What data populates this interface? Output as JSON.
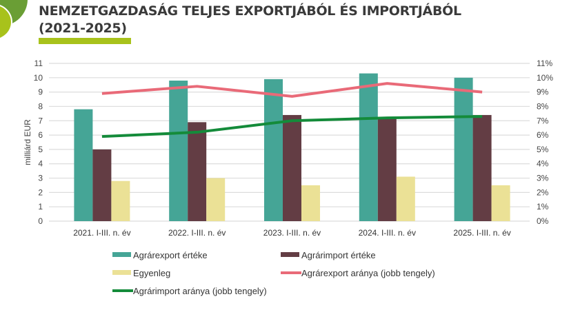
{
  "header": {
    "title_line2": "NEMZETGAZDASÁG TELJES EXPORTJÁBÓL ÉS IMPORTJÁBÓL",
    "title_line3": "(2021-2025)"
  },
  "chart_data": {
    "type": "bar",
    "categories": [
      "2021. I-III. n. év",
      "2022. I-III. n. év",
      "2023. I-III. n. év",
      "2024. I-III. n. év",
      "2025. I-III. n. év"
    ],
    "ylabel": "milliárd EUR",
    "ylim": [
      0,
      11
    ],
    "y_ticks": [
      "0",
      "1",
      "2",
      "3",
      "4",
      "5",
      "6",
      "7",
      "8",
      "9",
      "10",
      "11"
    ],
    "y2lim": [
      0,
      11
    ],
    "y2_ticks": [
      "0%",
      "1%",
      "2%",
      "3%",
      "4%",
      "5%",
      "6%",
      "7%",
      "8%",
      "9%",
      "10%",
      "11%"
    ],
    "grid": true,
    "legend_placement": "bottom",
    "series": [
      {
        "name": "Agrárexport értéke",
        "kind": "bar",
        "axis": "left",
        "color": "#45a596",
        "values": [
          7.8,
          9.8,
          9.9,
          10.3,
          10.0
        ]
      },
      {
        "name": "Agrárimport értéke",
        "kind": "bar",
        "axis": "left",
        "color": "#633d44",
        "values": [
          5.0,
          6.9,
          7.4,
          7.2,
          7.4
        ]
      },
      {
        "name": "Egyenleg",
        "kind": "bar",
        "axis": "left",
        "color": "#ebe196",
        "values": [
          2.8,
          3.0,
          2.5,
          3.1,
          2.5
        ]
      },
      {
        "name": "Agrárexport aránya (jobb tengely)",
        "kind": "line",
        "axis": "right",
        "color": "#e96a78",
        "values": [
          8.9,
          9.4,
          8.7,
          9.6,
          9.0
        ]
      },
      {
        "name": "Agrárimport aránya (jobb tengely)",
        "kind": "line",
        "axis": "right",
        "color": "#148b3a",
        "values": [
          5.9,
          6.2,
          7.0,
          7.2,
          7.3
        ]
      }
    ]
  }
}
